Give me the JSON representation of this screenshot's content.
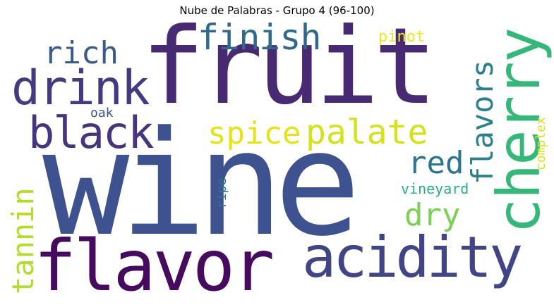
{
  "title": "Nube de Palabras - Grupo 4 (96-100)",
  "words": [
    {
      "id": "wine",
      "text": "wine",
      "color": "#3e5290"
    },
    {
      "id": "fruit",
      "text": "fruit",
      "color": "#482a73"
    },
    {
      "id": "flavor",
      "text": "flavor",
      "color": "#460b5e"
    },
    {
      "id": "acidity",
      "text": "acidity",
      "color": "#414486"
    },
    {
      "id": "cherry",
      "text": "cherry",
      "color": "#35b779"
    },
    {
      "id": "drink",
      "text": "drink",
      "color": "#433a82"
    },
    {
      "id": "black",
      "text": "black",
      "color": "#46347f"
    },
    {
      "id": "finish",
      "text": "finish",
      "color": "#31688e"
    },
    {
      "id": "rich",
      "text": "rich",
      "color": "#3a5a8c"
    },
    {
      "id": "palate",
      "text": "palate",
      "color": "#d5e21a"
    },
    {
      "id": "spice",
      "text": "spice",
      "color": "#e6e419"
    },
    {
      "id": "flavors",
      "text": "flavors",
      "color": "#2c7f8e"
    },
    {
      "id": "red",
      "text": "red",
      "color": "#2a768e"
    },
    {
      "id": "dry",
      "text": "dry",
      "color": "#7ad151"
    },
    {
      "id": "tannin",
      "text": "tannin",
      "color": "#b2dd2c"
    },
    {
      "id": "vineyard",
      "text": "vineyard",
      "color": "#26ad81"
    },
    {
      "id": "complex",
      "text": "complex",
      "color": "#dde318"
    },
    {
      "id": "pinot",
      "text": "pinot",
      "color": "#f2e51d"
    },
    {
      "id": "oak",
      "text": "oak",
      "color": "#3a538b"
    },
    {
      "id": "ripe",
      "text": "ripe",
      "color": "#2a788e"
    }
  ]
}
